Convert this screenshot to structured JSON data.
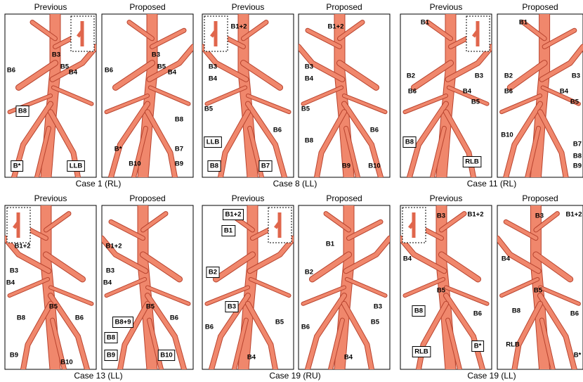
{
  "panels": [
    {
      "caption": "Case 1  (RL)",
      "views": [
        {
          "title": "Previous",
          "labels": [
            "B3",
            "B6",
            "B5",
            "B4",
            "B8",
            "B*",
            "LLB"
          ]
        },
        {
          "title": "Proposed",
          "labels": [
            "B3",
            "B6",
            "B5",
            "B4",
            "B8",
            "B*",
            "B7",
            "B10",
            "B9"
          ]
        }
      ]
    },
    {
      "caption": "Case 8  (LL)",
      "views": [
        {
          "title": "Previous",
          "labels": [
            "B1+2",
            "B3",
            "B4",
            "B5",
            "B6",
            "LLB",
            "B8",
            "B7"
          ]
        },
        {
          "title": "Proposed",
          "labels": [
            "B1+2",
            "B3",
            "B4",
            "B5",
            "B6",
            "B8",
            "B9",
            "B10"
          ]
        }
      ]
    },
    {
      "caption": "Case 11  (RL)",
      "views": [
        {
          "title": "Previous",
          "labels": [
            "B1",
            "B2",
            "B3",
            "B6",
            "B4",
            "B5",
            "B8",
            "RLB"
          ]
        },
        {
          "title": "Proposed",
          "labels": [
            "B1",
            "B2",
            "B3",
            "B6",
            "B4",
            "B5",
            "B10",
            "B7",
            "B8",
            "B9"
          ]
        }
      ]
    },
    {
      "caption": "Case 13  (LL)",
      "views": [
        {
          "title": "Previous",
          "labels": [
            "B1+2",
            "B3",
            "B4",
            "B5",
            "B8",
            "B6",
            "B9",
            "B10"
          ]
        },
        {
          "title": "Proposed",
          "labels": [
            "B1+2",
            "B3",
            "B4",
            "B5",
            "B8+9",
            "B8",
            "B9",
            "B6",
            "B10"
          ]
        }
      ]
    },
    {
      "caption": "Case 19  (RU)",
      "views": [
        {
          "title": "Previous",
          "labels": [
            "B1+2",
            "B1",
            "B2",
            "B3",
            "B6",
            "B5",
            "B4"
          ]
        },
        {
          "title": "Proposed",
          "labels": [
            "B1",
            "B2",
            "B3",
            "B6",
            "B5",
            "B4"
          ]
        }
      ]
    },
    {
      "caption": "Case 19  (LL)",
      "views": [
        {
          "title": "Previous",
          "labels": [
            "B3",
            "B1+2",
            "B4",
            "B5",
            "B8",
            "B6",
            "RLB",
            "B*"
          ]
        },
        {
          "title": "Proposed",
          "labels": [
            "B3",
            "B1+2",
            "B4",
            "B5",
            "B8",
            "B6",
            "RLB",
            "B*"
          ]
        }
      ]
    }
  ]
}
